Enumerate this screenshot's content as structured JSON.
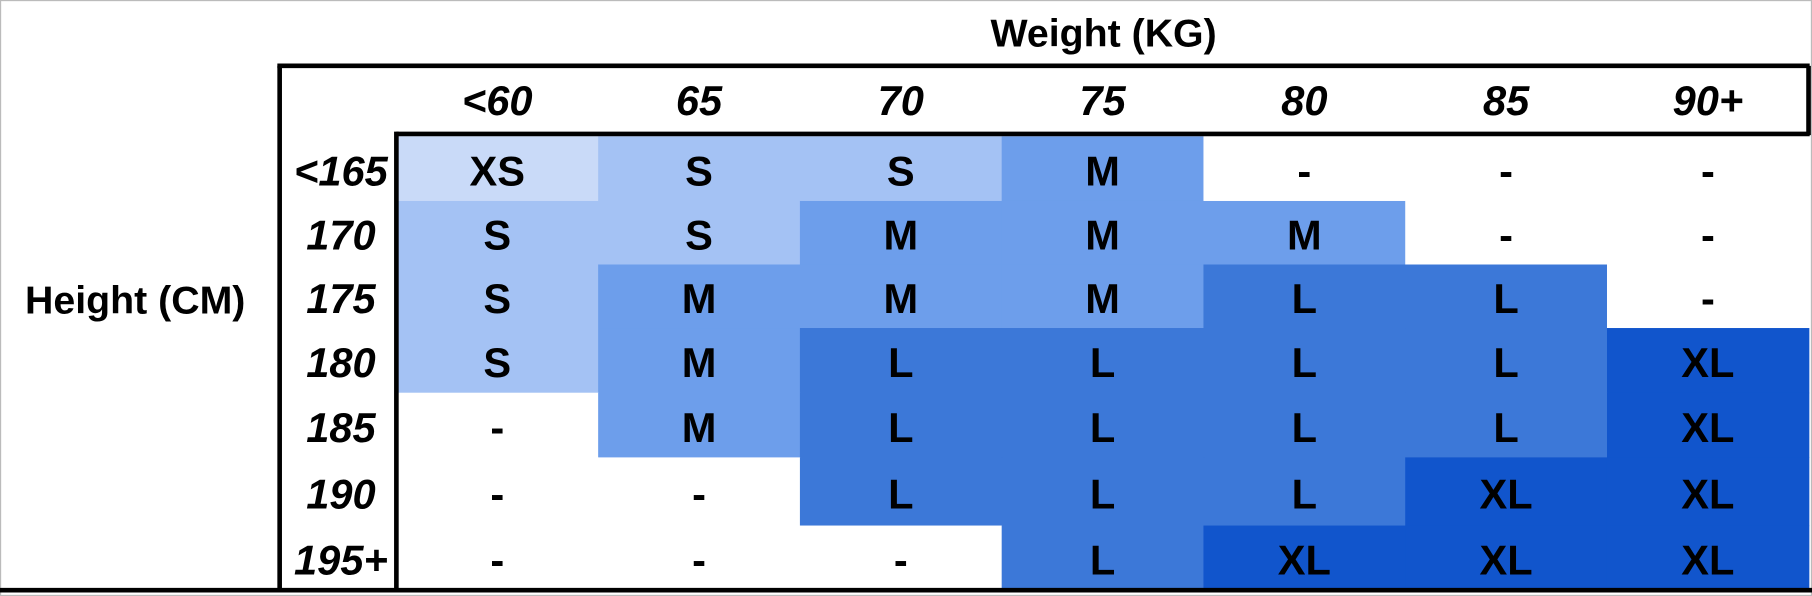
{
  "title": "Weight (KG)",
  "row_label": "Height (CM)",
  "columns": [
    "<60",
    "65",
    "70",
    "75",
    "80",
    "85",
    "90+"
  ],
  "rows": [
    {
      "label": "<165",
      "cells": [
        "XS",
        "S",
        "S",
        "M",
        "-",
        "-",
        "-"
      ]
    },
    {
      "label": "170",
      "cells": [
        "S",
        "S",
        "M",
        "M",
        "M",
        "-",
        "-"
      ]
    },
    {
      "label": "175",
      "cells": [
        "S",
        "M",
        "M",
        "M",
        "L",
        "L",
        "-"
      ]
    },
    {
      "label": "180",
      "cells": [
        "S",
        "M",
        "L",
        "L",
        "L",
        "L",
        "XL"
      ]
    },
    {
      "label": "185",
      "cells": [
        "-",
        "M",
        "L",
        "L",
        "L",
        "L",
        "XL"
      ]
    },
    {
      "label": "190",
      "cells": [
        "-",
        "-",
        "L",
        "L",
        "L",
        "XL",
        "XL"
      ]
    },
    {
      "label": "195+",
      "cells": [
        "-",
        "-",
        "-",
        "L",
        "XL",
        "XL",
        "XL"
      ]
    }
  ],
  "size_colors": {
    "XS": "#c9daf8",
    "S": "#a4c2f4",
    "M": "#6d9eeb",
    "L": "#3c78d8",
    "XL": "#1155cc",
    "-": "#ffffff"
  }
}
